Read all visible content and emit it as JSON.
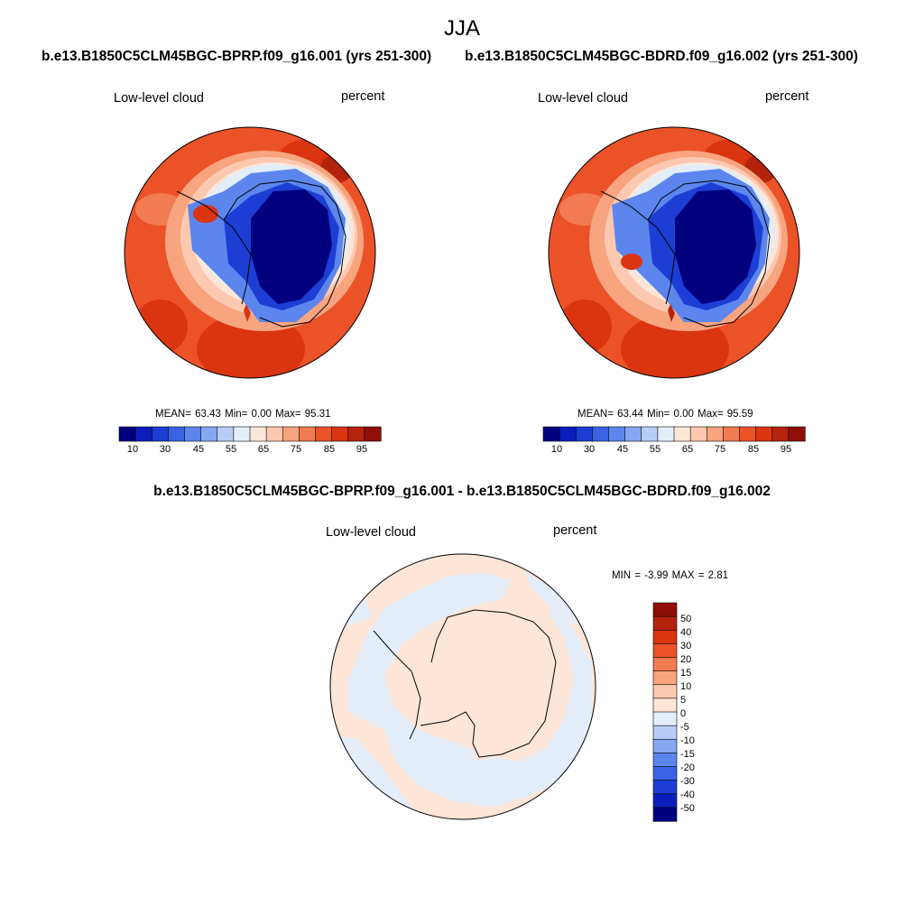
{
  "figure": {
    "season": "JJA"
  },
  "panels": [
    {
      "title": "b.e13.B1850C5CLM45BGC-BPRP.f09_g16.001 (yrs 251-300)",
      "variable": "Low-level cloud",
      "units": "percent",
      "stats": "MEAN=  63.43  Min=   0.00  Max=  95.31"
    },
    {
      "title": "b.e13.B1850C5CLM45BGC-BDRD.f09_g16.002 (yrs 251-300)",
      "variable": "Low-level cloud",
      "units": "percent",
      "stats": "MEAN=  63.44  Min=   0.00  Max=  95.59"
    }
  ],
  "diff_panel": {
    "title": "b.e13.B1850C5CLM45BGC-BPRP.f09_g16.001 - b.e13.B1850C5CLM45BGC-BDRD.f09_g16.002",
    "variable": "Low-level cloud",
    "units": "percent",
    "stats": "MIN =  -3.99 MAX =   2.81"
  },
  "colorbar_abs": {
    "colors": [
      "#02007f",
      "#0b1ebc",
      "#1c3ed4",
      "#3a62e4",
      "#5c86ee",
      "#86a8f3",
      "#b8cdf6",
      "#e3eefa",
      "#fde6d8",
      "#fcc8b0",
      "#f8a47f",
      "#f37b51",
      "#ec5228",
      "#da3510",
      "#b4230c",
      "#8f0f08"
    ],
    "labels": [
      "10",
      "30",
      "45",
      "55",
      "65",
      "75",
      "85",
      "95"
    ]
  },
  "colorbar_diff": {
    "colors": [
      "#8f0f08",
      "#b4230c",
      "#da3510",
      "#ec5228",
      "#f37b51",
      "#f8a47f",
      "#fcc8b0",
      "#fde6d8",
      "#e3eefa",
      "#b8cdf6",
      "#86a8f3",
      "#5c86ee",
      "#3a62e4",
      "#1c3ed4",
      "#0b1ebc",
      "#02007f"
    ],
    "labels": [
      "50",
      "40",
      "30",
      "20",
      "15",
      "10",
      "5",
      "0",
      "-5",
      "-10",
      "-15",
      "-20",
      "-30",
      "-40",
      "-50"
    ]
  }
}
